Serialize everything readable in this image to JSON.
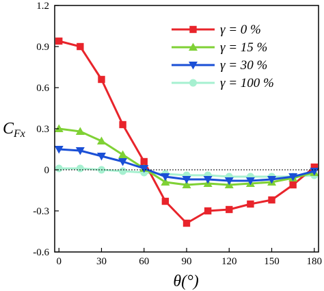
{
  "chart_data": {
    "type": "line",
    "xlabel": "θ(°)",
    "ylabel": "C",
    "ylabel_sub": "Fx",
    "xlim": [
      -3,
      183
    ],
    "ylim": [
      -0.6,
      1.2
    ],
    "xticks": [
      0,
      30,
      60,
      90,
      120,
      150,
      180
    ],
    "yticks": [
      1.2,
      0.9,
      0.6,
      0.3,
      0,
      -0.3,
      -0.6
    ],
    "xtick_labels": [
      "0",
      "30",
      "60",
      "90",
      "120",
      "150",
      "180"
    ],
    "ytick_labels": [
      "1.2",
      "0.9",
      "0.6",
      "0.3",
      "0",
      "-0.3",
      "-0.6"
    ],
    "reference_line": 0,
    "grid": false,
    "legend_position": "top-right",
    "x": [
      0,
      15,
      30,
      45,
      60,
      75,
      90,
      105,
      120,
      135,
      150,
      165,
      180
    ],
    "series": [
      {
        "name": "γ = 0 %",
        "color": "#e8242b",
        "marker": "square",
        "values": [
          0.94,
          0.9,
          0.66,
          0.33,
          0.06,
          -0.23,
          -0.39,
          -0.3,
          -0.29,
          -0.25,
          -0.22,
          -0.11,
          0.02
        ]
      },
      {
        "name": "γ = 15 %",
        "color": "#7fd135",
        "marker": "triangle-up",
        "values": [
          0.3,
          0.28,
          0.21,
          0.11,
          0.01,
          -0.09,
          -0.11,
          -0.1,
          -0.11,
          -0.1,
          -0.09,
          -0.06,
          -0.02
        ]
      },
      {
        "name": "γ = 30 %",
        "color": "#1a4fd6",
        "marker": "triangle-down",
        "values": [
          0.15,
          0.14,
          0.1,
          0.06,
          0.01,
          -0.05,
          -0.07,
          -0.07,
          -0.08,
          -0.08,
          -0.07,
          -0.05,
          -0.01
        ]
      },
      {
        "name": "γ = 100 %",
        "color": "#a6f0d0",
        "marker": "circle",
        "values": [
          0.01,
          0.01,
          0.0,
          -0.01,
          -0.02,
          -0.03,
          -0.04,
          -0.04,
          -0.05,
          -0.05,
          -0.05,
          -0.05,
          -0.04
        ]
      }
    ]
  }
}
